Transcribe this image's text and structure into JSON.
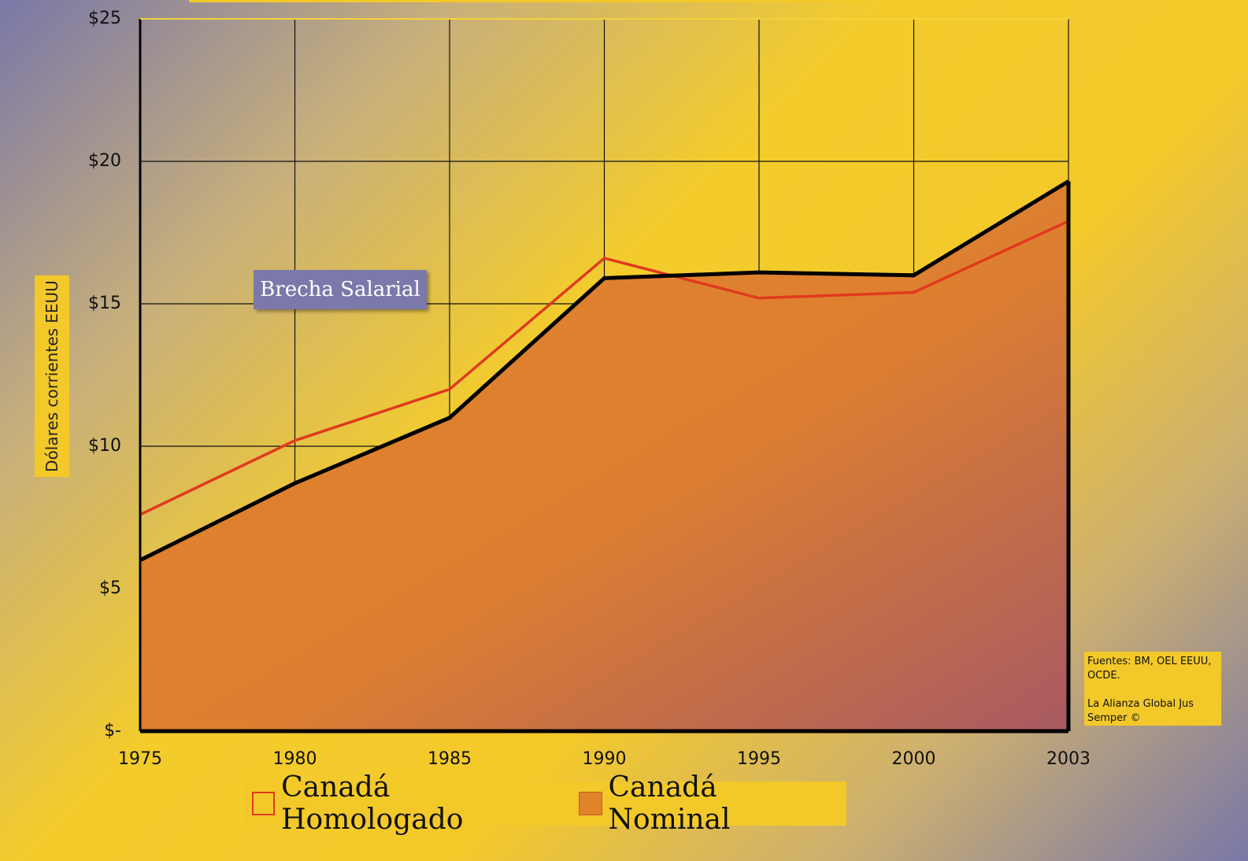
{
  "chart_data": {
    "type": "area",
    "y_label": "Dólares corrientes EEUU",
    "annotation": "Brecha Salarial",
    "source": [
      "Fuentes: BM, OEL EEUU, OCDE.",
      "La Alianza Global Jus Semper ©"
    ],
    "categories": [
      "1975",
      "1980",
      "1985",
      "1990",
      "1995",
      "2000",
      "2003"
    ],
    "series": [
      {
        "name": "Canadá Homologado",
        "type": "line",
        "color": "#e03a1e",
        "values": [
          7.6,
          10.2,
          12.0,
          16.6,
          15.2,
          15.4,
          17.9
        ]
      },
      {
        "name": "Canadá Nominal",
        "type": "area",
        "color": "#e0832a",
        "line_color": "#000000",
        "values": [
          6.0,
          8.7,
          11.0,
          15.9,
          16.1,
          16.0,
          19.3
        ]
      }
    ],
    "ylim": [
      0,
      25
    ],
    "yticks": [
      {
        "value": 0,
        "label": "$-"
      },
      {
        "value": 5,
        "label": "$5"
      },
      {
        "value": 10,
        "label": "$10"
      },
      {
        "value": 15,
        "label": "$15"
      },
      {
        "value": 20,
        "label": "$20"
      },
      {
        "value": 25,
        "label": "$25"
      }
    ],
    "grid": true,
    "legend": "bottom"
  }
}
